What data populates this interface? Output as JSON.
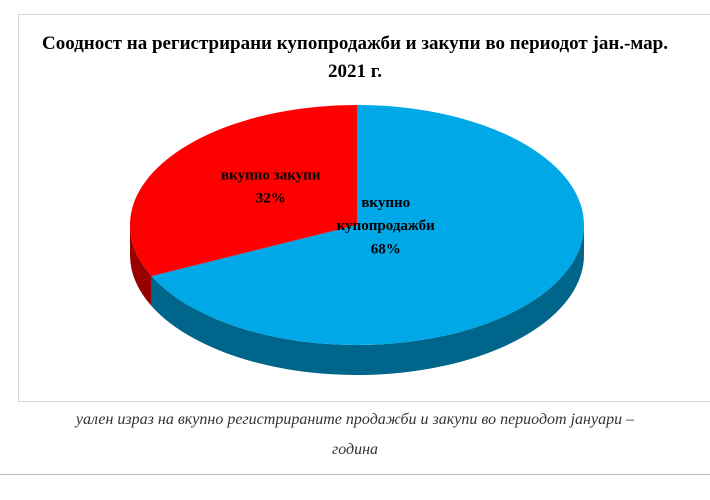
{
  "chart_data": {
    "type": "pie",
    "title": "Соодност на регистрирани купопродажби и закупи во периодот јан.-мар. 2021 г.",
    "categories": [
      "вкупно купопродажби",
      "вкупно закупи"
    ],
    "values": [
      68,
      32
    ],
    "value_labels": [
      "68%",
      "32%"
    ],
    "colors": [
      "#00a8e8",
      "#ff0000"
    ]
  },
  "caption": [
    "уален израз на вкупно регистрираните продажби и закупи во периодот јануари –",
    "година"
  ]
}
